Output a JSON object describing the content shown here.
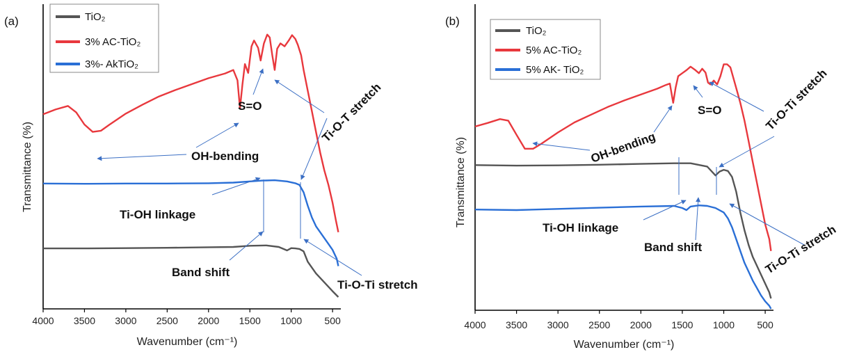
{
  "chart_data": [
    {
      "type": "line",
      "panel_label": "(a)",
      "xlabel": "Wavenumber (cm⁻¹)",
      "ylabel": "Transmittance (%)",
      "xlim": [
        4000,
        400
      ],
      "x_reversed": true,
      "x_ticks": [
        4000,
        3500,
        3000,
        2500,
        2000,
        1500,
        1000,
        500
      ],
      "y_ticks_shown": false,
      "legend_position": "top-left",
      "series": [
        {
          "name": "TiO₂",
          "color": "#555555",
          "x": [
            4000,
            3500,
            3000,
            2500,
            2000,
            1700,
            1500,
            1300,
            1150,
            1050,
            1000,
            950,
            900,
            850,
            800,
            700,
            600,
            500,
            430
          ],
          "y": [
            0.205,
            0.205,
            0.206,
            0.207,
            0.209,
            0.21,
            0.214,
            0.215,
            0.21,
            0.198,
            0.206,
            0.205,
            0.203,
            0.195,
            0.16,
            0.12,
            0.09,
            0.06,
            0.04
          ]
        },
        {
          "name": "3% AC-TiO₂",
          "color": "#e8383d",
          "x": [
            4000,
            3850,
            3700,
            3600,
            3500,
            3400,
            3300,
            3200,
            3000,
            2800,
            2600,
            2400,
            2200,
            2000,
            1800,
            1700,
            1650,
            1620,
            1590,
            1560,
            1520,
            1480,
            1450,
            1400,
            1370,
            1330,
            1290,
            1260,
            1230,
            1200,
            1170,
            1130,
            1080,
            1030,
            990,
            950,
            920,
            880,
            850,
            800,
            750,
            700,
            650,
            600,
            550,
            500,
            460,
            430
          ],
          "y": [
            0.66,
            0.676,
            0.688,
            0.666,
            0.625,
            0.6,
            0.604,
            0.624,
            0.662,
            0.692,
            0.72,
            0.742,
            0.762,
            0.782,
            0.798,
            0.81,
            0.775,
            0.68,
            0.76,
            0.83,
            0.8,
            0.89,
            0.91,
            0.885,
            0.842,
            0.9,
            0.93,
            0.92,
            0.862,
            0.81,
            0.882,
            0.9,
            0.89,
            0.91,
            0.928,
            0.915,
            0.895,
            0.86,
            0.81,
            0.74,
            0.67,
            0.6,
            0.53,
            0.47,
            0.42,
            0.36,
            0.3,
            0.26
          ]
        },
        {
          "name": "3%- AkTiO₂",
          "color": "#2a6fd6",
          "x": [
            4000,
            3500,
            3000,
            2500,
            2000,
            1700,
            1500,
            1350,
            1200,
            1050,
            950,
            900,
            850,
            800,
            750,
            700,
            650,
            600,
            550,
            500,
            450,
            430
          ],
          "y": [
            0.425,
            0.424,
            0.425,
            0.425,
            0.426,
            0.428,
            0.432,
            0.435,
            0.436,
            0.432,
            0.426,
            0.42,
            0.395,
            0.35,
            0.31,
            0.28,
            0.26,
            0.24,
            0.22,
            0.2,
            0.17,
            0.145
          ]
        }
      ],
      "annotations": {
        "s_o": "S=O",
        "ti_o_t": "Ti-O-T stretch",
        "oh_bending": "OH-bending",
        "ti_oh": "Ti-OH linkage",
        "band_shift": "Band shift",
        "ti_o_ti": "Ti-O-Ti stretch"
      }
    },
    {
      "type": "line",
      "panel_label": "(b)",
      "xlabel": "Wavenumber (cm⁻¹)",
      "ylabel": "Transmittance (%)",
      "xlim": [
        4000,
        400
      ],
      "x_reversed": true,
      "x_ticks": [
        4000,
        3500,
        3000,
        2500,
        2000,
        1500,
        1000,
        500
      ],
      "y_ticks_shown": false,
      "legend_position": "top-left",
      "series": [
        {
          "name": "TiO₂",
          "color": "#555555",
          "x": [
            4000,
            3500,
            3000,
            2500,
            2000,
            1600,
            1400,
            1200,
            1100,
            1050,
            1000,
            950,
            900,
            850,
            800,
            750,
            700,
            650,
            600,
            550,
            500,
            450,
            430
          ],
          "y": [
            0.49,
            0.488,
            0.489,
            0.491,
            0.494,
            0.496,
            0.496,
            0.485,
            0.455,
            0.468,
            0.474,
            0.47,
            0.45,
            0.4,
            0.33,
            0.27,
            0.22,
            0.18,
            0.15,
            0.12,
            0.09,
            0.06,
            0.04
          ]
        },
        {
          "name": "5% AC-TiO₂",
          "color": "#e8383d",
          "x": [
            4000,
            3850,
            3700,
            3600,
            3500,
            3400,
            3300,
            3200,
            3000,
            2800,
            2600,
            2400,
            2200,
            2000,
            1800,
            1700,
            1650,
            1610,
            1580,
            1550,
            1500,
            1450,
            1400,
            1350,
            1300,
            1260,
            1220,
            1190,
            1160,
            1120,
            1080,
            1040,
            1000,
            960,
            920,
            880,
            840,
            800,
            750,
            700,
            650,
            600,
            550,
            500,
            450,
            430
          ],
          "y": [
            0.62,
            0.632,
            0.645,
            0.64,
            0.592,
            0.545,
            0.545,
            0.562,
            0.6,
            0.634,
            0.66,
            0.686,
            0.708,
            0.728,
            0.748,
            0.76,
            0.765,
            0.7,
            0.752,
            0.79,
            0.8,
            0.81,
            0.822,
            0.812,
            0.8,
            0.815,
            0.802,
            0.768,
            0.762,
            0.775,
            0.762,
            0.79,
            0.83,
            0.83,
            0.82,
            0.78,
            0.74,
            0.7,
            0.64,
            0.57,
            0.5,
            0.43,
            0.36,
            0.29,
            0.24,
            0.2
          ]
        },
        {
          "name": "5% AK- TiO₂",
          "color": "#2a6fd6",
          "x": [
            4000,
            3500,
            3000,
            2500,
            2000,
            1600,
            1500,
            1450,
            1400,
            1300,
            1200,
            1100,
            1000,
            950,
            900,
            850,
            800,
            750,
            700,
            650,
            600,
            550,
            500,
            450,
            430
          ],
          "y": [
            0.34,
            0.338,
            0.342,
            0.346,
            0.35,
            0.352,
            0.345,
            0.338,
            0.35,
            0.354,
            0.352,
            0.345,
            0.33,
            0.31,
            0.28,
            0.24,
            0.2,
            0.16,
            0.13,
            0.1,
            0.075,
            0.05,
            0.03,
            0.015,
            0.005
          ]
        }
      ],
      "annotations": {
        "oh_bending": "OH-bending",
        "s_o": "S=O",
        "ti_o_ti_top": "Ti-O-Ti stretch",
        "ti_oh": "Ti-OH linkage",
        "band_shift": "Band shift",
        "ti_o_ti_bottom": "Ti-O-Ti stretch"
      }
    }
  ]
}
